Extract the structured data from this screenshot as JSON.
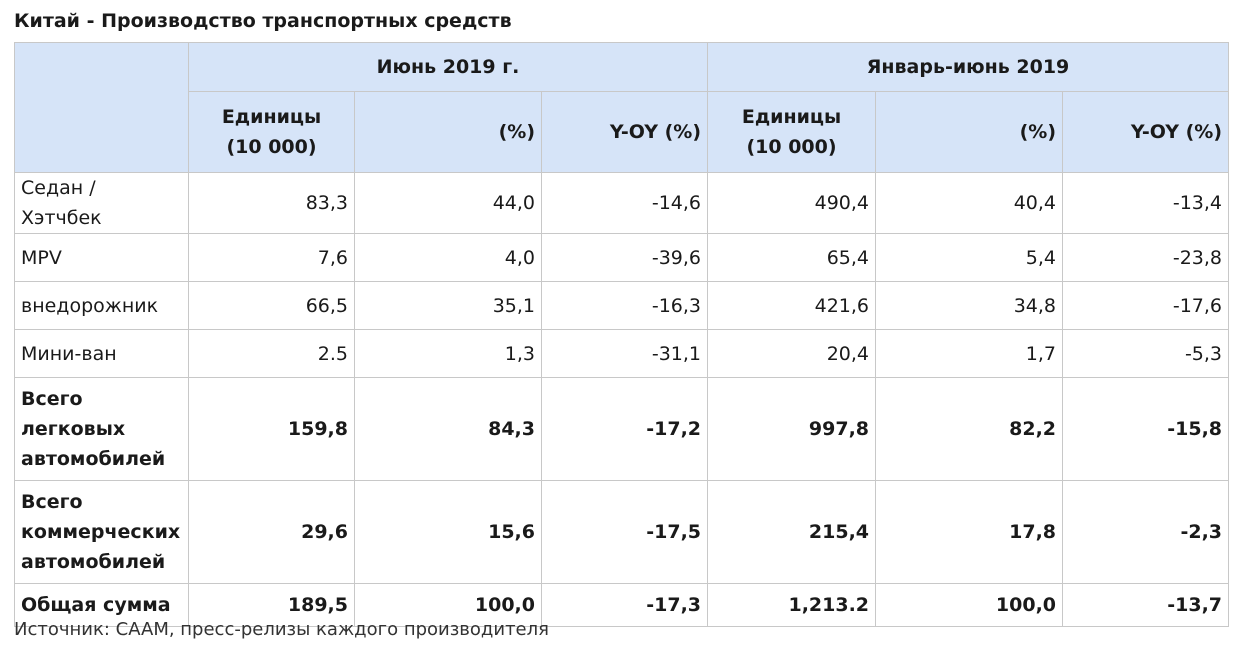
{
  "title": "Китай - Производство транспортных средств",
  "groups": {
    "june": "Июнь 2019 г.",
    "jan_jun": "Январь-июнь 2019"
  },
  "subheaders": {
    "units_line1": "Единицы",
    "units_line2": "(10 000)",
    "percent": "(%)",
    "yoy": "Y-OY (%)"
  },
  "rows": [
    {
      "label": "Седан / Хэтчбек",
      "values": [
        "83,3",
        "44,0",
        "-14,6",
        "490,4",
        "40,4",
        "-13,4"
      ]
    },
    {
      "label": "MPV",
      "values": [
        "7,6",
        "4,0",
        "-39,6",
        "65,4",
        "5,4",
        "-23,8"
      ]
    },
    {
      "label": "внедорожник",
      "values": [
        "66,5",
        "35,1",
        "-16,3",
        "421,6",
        "34,8",
        "-17,6"
      ]
    },
    {
      "label": "Мини-ван",
      "values": [
        "2.5",
        "1,3",
        "-31,1",
        "20,4",
        "1,7",
        "-5,3"
      ]
    },
    {
      "label": "Всего легковых автомобилей",
      "values": [
        "159,8",
        "84,3",
        "-17,2",
        "997,8",
        "82,2",
        "-15,8"
      ]
    },
    {
      "label": "Всего коммерческих автомобилей",
      "values": [
        "29,6",
        "15,6",
        "-17,5",
        "215,4",
        "17,8",
        "-2,3"
      ]
    },
    {
      "label": "Общая сумма",
      "values": [
        "189,5",
        "100,0",
        "-17,3",
        "1,213.2",
        "100,0",
        "-13,7"
      ]
    }
  ],
  "source": "Источник: CAAM, пресс-релизы каждого производителя",
  "colors": {
    "header_bg": "#d6e4f8",
    "border": "#c8c8c8"
  }
}
